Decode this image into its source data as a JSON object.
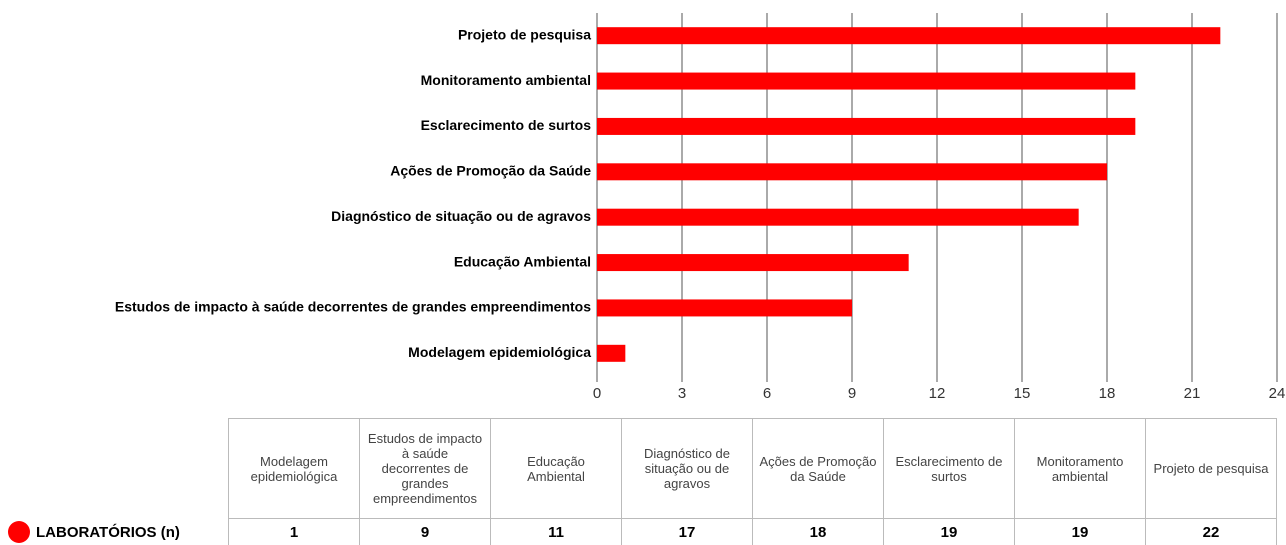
{
  "chart_data": {
    "type": "bar",
    "orientation": "horizontal",
    "categories": [
      "Modelagem epidemiológica",
      "Estudos de impacto à saúde decorrentes de grandes empreendimentos",
      "Educação Ambiental",
      "Diagnóstico de situação ou de agravos",
      "Ações de Promoção da Saúde",
      "Esclarecimento de surtos",
      "Monitoramento ambiental",
      "Projeto de pesquisa"
    ],
    "series": [
      {
        "name": "LABORATÓRIOS (n)",
        "color": "#ff0000",
        "values": [
          1,
          9,
          11,
          17,
          18,
          19,
          19,
          22
        ]
      }
    ],
    "xlim": [
      0,
      24
    ],
    "xticks": [
      0,
      3,
      6,
      9,
      12,
      15,
      18,
      21,
      24
    ],
    "grid": true,
    "data_table": true
  }
}
